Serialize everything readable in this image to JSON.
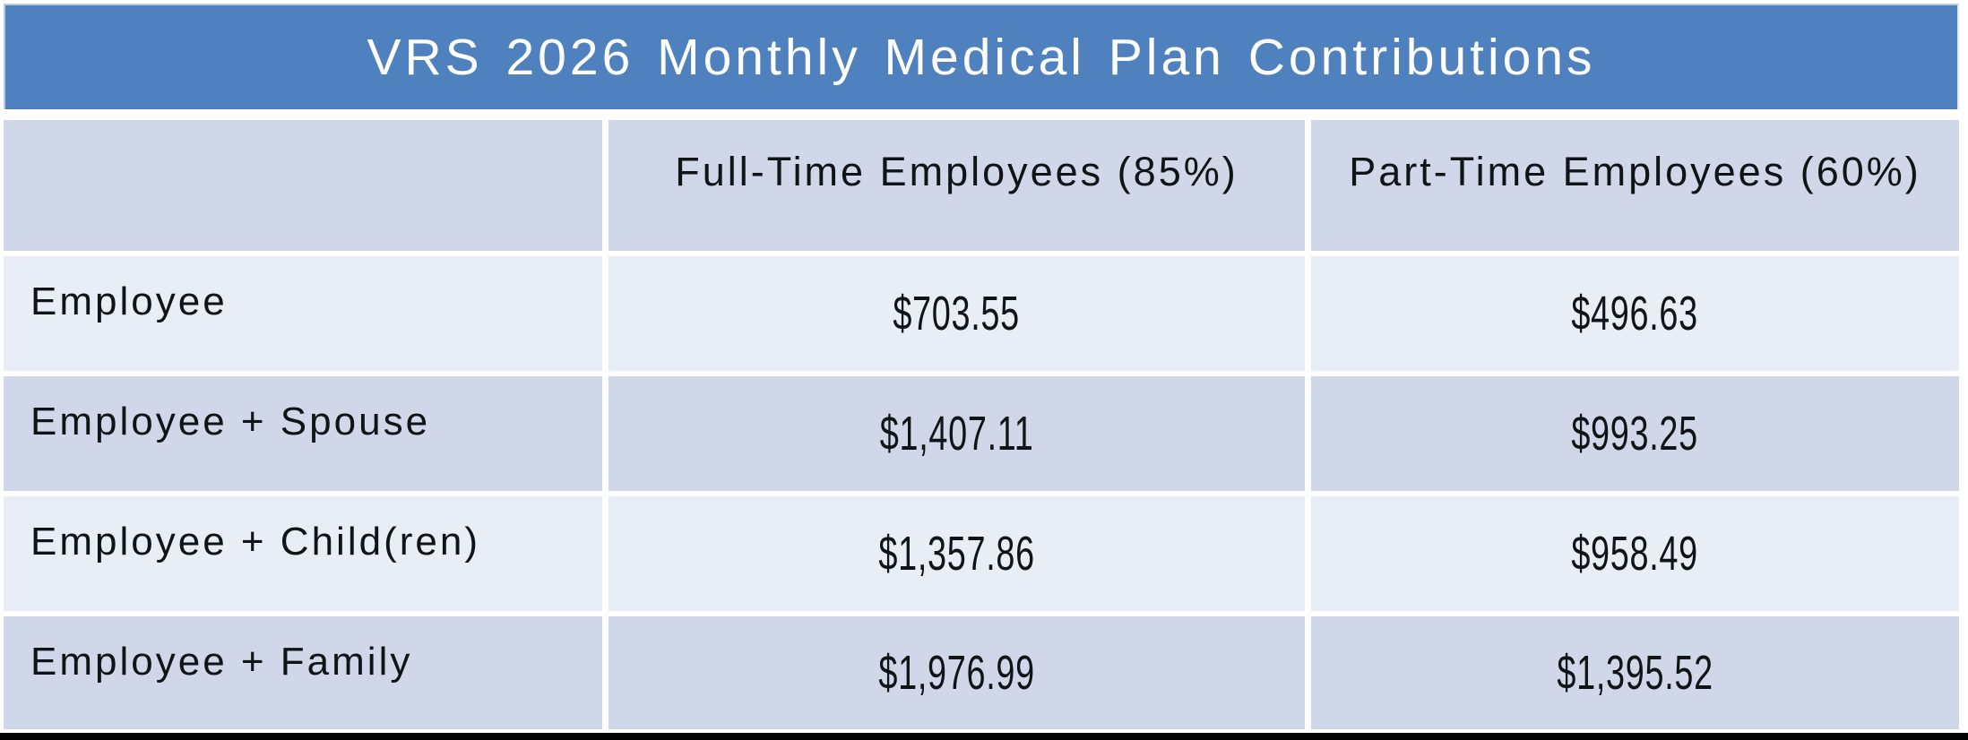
{
  "title": "VRS 2026 Monthly Medical Plan Contributions",
  "table": {
    "columns": {
      "row_header": "",
      "full_time": "Full-Time Employees (85%)",
      "part_time": "Part-Time Employees (60%)"
    },
    "rows": [
      {
        "label": "Employee",
        "full_time": "$703.55",
        "part_time": "$496.63"
      },
      {
        "label": "Employee + Spouse",
        "full_time": "$1,407.11",
        "part_time": "$993.25"
      },
      {
        "label": "Employee + Child(ren)",
        "full_time": "$1,357.86",
        "part_time": "$958.49"
      },
      {
        "label": "Employee + Family",
        "full_time": "$1,976.99",
        "part_time": "$1,395.52"
      }
    ]
  },
  "colors": {
    "title_bar_background": "#4E81BD",
    "title_text": "#FFFFFF",
    "band_dark": "#CFD7E8",
    "band_light": "#E9EDF5",
    "separator": "#FFFFFF",
    "bottom_rule": "#000000",
    "cell_text": "#111417"
  }
}
